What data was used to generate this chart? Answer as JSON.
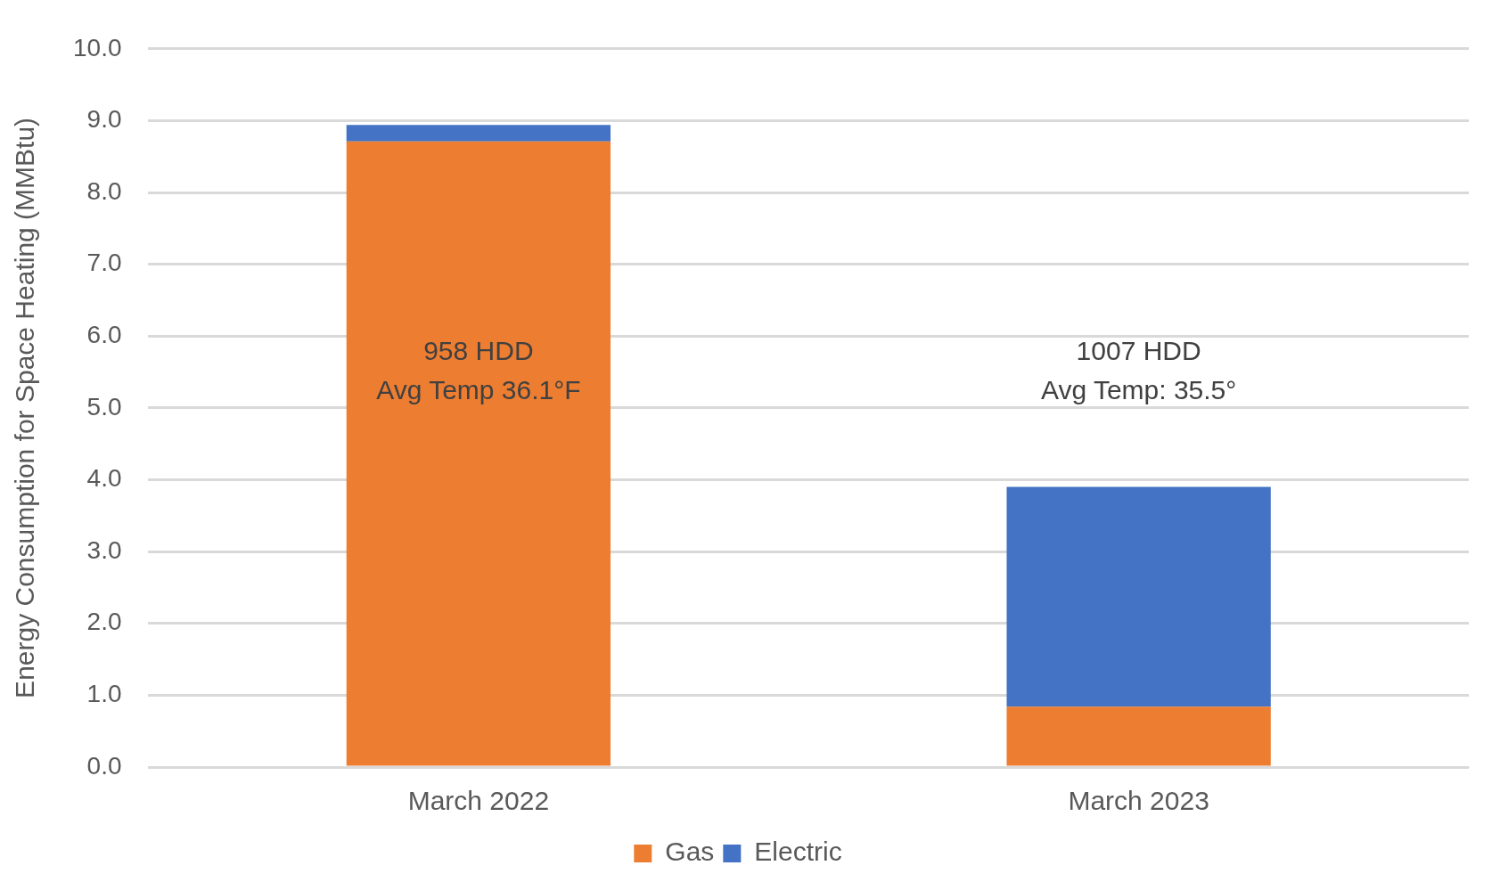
{
  "chart_data": {
    "type": "bar",
    "stacked": true,
    "ylabel": "Energy Consumption for Space Heating (MMBtu)",
    "categories": [
      "March 2022",
      "March 2023"
    ],
    "series": [
      {
        "name": "Gas",
        "color": "#ed7d31",
        "values": [
          8.71,
          0.84
        ]
      },
      {
        "name": "Electric",
        "color": "#4472c4",
        "values": [
          0.23,
          3.06
        ]
      }
    ],
    "ylim": [
      0,
      10
    ],
    "yticks": [
      {
        "value": 0,
        "label": "0.0"
      },
      {
        "value": 1,
        "label": "1.0"
      },
      {
        "value": 2,
        "label": "2.0"
      },
      {
        "value": 3,
        "label": "3.0"
      },
      {
        "value": 4,
        "label": "4.0"
      },
      {
        "value": 5,
        "label": "5.0"
      },
      {
        "value": 6,
        "label": "6.0"
      },
      {
        "value": 7,
        "label": "7.0"
      },
      {
        "value": 8,
        "label": "8.0"
      },
      {
        "value": 9,
        "label": "9.0"
      },
      {
        "value": 10,
        "label": "10.0"
      }
    ],
    "grid": "y",
    "legend": "bottom",
    "annotations": [
      "958 HDD\nAvg Temp 36.1°F",
      "1007 HDD\nAvg Temp: 35.5°"
    ]
  }
}
